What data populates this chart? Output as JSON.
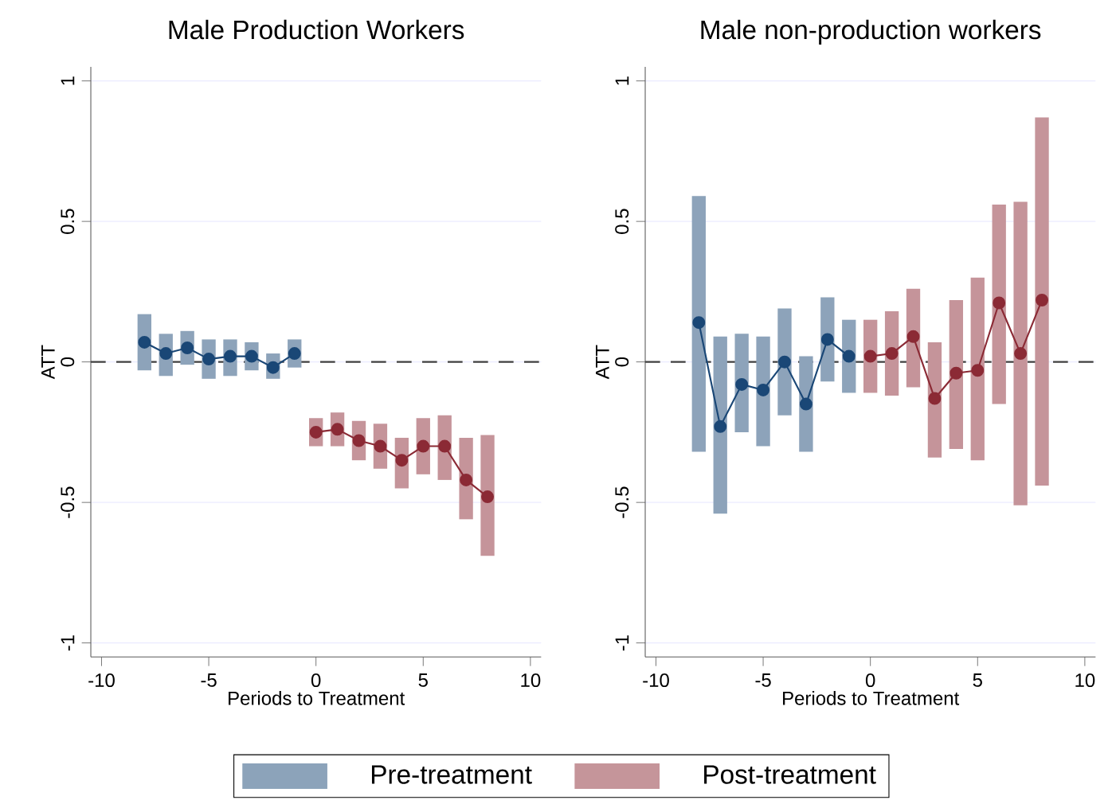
{
  "chart_data": [
    {
      "type": "line",
      "title": "Male Production Workers",
      "xlabel": "Periods to Treatment",
      "ylabel": "ATT",
      "xlim": [
        -10.5,
        10.5
      ],
      "ylim": [
        -1.05,
        1.05
      ],
      "xticks": [
        -10,
        -5,
        0,
        5,
        10
      ],
      "yticks": [
        -1,
        -0.5,
        0,
        0.5,
        1
      ],
      "grid": "y",
      "marker": "circle",
      "line_style": "solid",
      "legend": "bottom",
      "ref_lines": [
        {
          "axis": "y",
          "value": 0,
          "line_style": "dashed",
          "color": "#404040"
        }
      ],
      "series": [
        {
          "name": "Pre-treatment",
          "color": "#1a4776",
          "x": [
            -8,
            -7,
            -6,
            -5,
            -4,
            -3,
            -2,
            -1
          ],
          "values": [
            0.07,
            0.03,
            0.05,
            0.01,
            0.02,
            0.02,
            -0.02,
            0.03
          ],
          "errors": [
            [
              -0.03,
              0.17
            ],
            [
              -0.05,
              0.1
            ],
            [
              -0.01,
              0.11
            ],
            [
              -0.06,
              0.08
            ],
            [
              -0.05,
              0.08
            ],
            [
              -0.03,
              0.07
            ],
            [
              -0.06,
              0.03
            ],
            [
              -0.02,
              0.08
            ]
          ]
        },
        {
          "name": "Post-treatment",
          "color": "#8b2a35",
          "x": [
            0,
            1,
            2,
            3,
            4,
            5,
            6,
            7,
            8
          ],
          "values": [
            -0.25,
            -0.24,
            -0.28,
            -0.3,
            -0.35,
            -0.3,
            -0.3,
            -0.42,
            -0.48
          ],
          "errors": [
            [
              -0.3,
              -0.2
            ],
            [
              -0.3,
              -0.18
            ],
            [
              -0.35,
              -0.21
            ],
            [
              -0.38,
              -0.22
            ],
            [
              -0.45,
              -0.27
            ],
            [
              -0.4,
              -0.2
            ],
            [
              -0.42,
              -0.19
            ],
            [
              -0.56,
              -0.27
            ],
            [
              -0.69,
              -0.26
            ]
          ]
        }
      ]
    },
    {
      "type": "line",
      "title": "Male non-production workers",
      "xlabel": "Periods to Treatment",
      "ylabel": "ATT",
      "xlim": [
        -10.5,
        10.5
      ],
      "ylim": [
        -1.05,
        1.05
      ],
      "xticks": [
        -10,
        -5,
        0,
        5,
        10
      ],
      "yticks": [
        -1,
        -0.5,
        0,
        0.5,
        1
      ],
      "grid": "y",
      "marker": "circle",
      "line_style": "solid",
      "ref_lines": [
        {
          "axis": "y",
          "value": 0,
          "line_style": "dashed",
          "color": "#404040"
        }
      ],
      "series": [
        {
          "color": "#1a4776",
          "x": [
            -8,
            -7,
            -6,
            -5,
            -4,
            -3,
            -2,
            -1
          ],
          "values": [
            0.14,
            -0.23,
            -0.08,
            -0.1,
            0.0,
            -0.15,
            0.08,
            0.02
          ],
          "errors": [
            [
              -0.32,
              0.59
            ],
            [
              -0.54,
              0.09
            ],
            [
              -0.25,
              0.1
            ],
            [
              -0.3,
              0.09
            ],
            [
              -0.19,
              0.19
            ],
            [
              -0.32,
              0.02
            ],
            [
              -0.07,
              0.23
            ],
            [
              -0.11,
              0.15
            ]
          ]
        },
        {
          "color": "#8b2a35",
          "x": [
            0,
            1,
            2,
            3,
            4,
            5,
            6,
            7,
            8
          ],
          "values": [
            0.02,
            0.03,
            0.09,
            -0.13,
            -0.04,
            -0.03,
            0.21,
            0.03,
            0.22
          ],
          "errors": [
            [
              -0.11,
              0.15
            ],
            [
              -0.12,
              0.18
            ],
            [
              -0.09,
              0.26
            ],
            [
              -0.34,
              0.07
            ],
            [
              -0.31,
              0.22
            ],
            [
              -0.35,
              0.3
            ],
            [
              -0.15,
              0.56
            ],
            [
              -0.51,
              0.57
            ],
            [
              -0.44,
              0.87
            ]
          ]
        }
      ]
    }
  ]
}
